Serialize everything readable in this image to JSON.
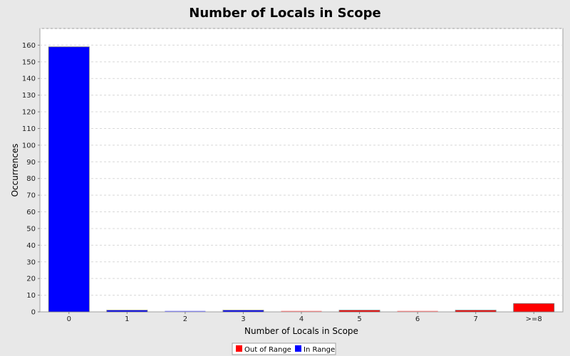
{
  "chart_data": {
    "type": "bar",
    "title": "Number of Locals in Scope",
    "xlabel": "Number of Locals in Scope",
    "ylabel": "Occurrences",
    "ylim": [
      0,
      170
    ],
    "ytick_step": 10,
    "grid": true,
    "legend_position": "bottom-center",
    "categories": [
      "0",
      "1",
      "2",
      "3",
      "4",
      "5",
      "6",
      "7",
      ">=8"
    ],
    "values": [
      159,
      1,
      0,
      1,
      0,
      1,
      0,
      1,
      5
    ],
    "bar_series": [
      "In Range",
      "In Range",
      "In Range",
      "In Range",
      "Out of Range",
      "Out of Range",
      "Out of Range",
      "Out of Range",
      "Out of Range"
    ],
    "series": [
      {
        "name": "Out of Range",
        "color": "#ff0000"
      },
      {
        "name": "In Range",
        "color": "#0000ff"
      }
    ]
  }
}
